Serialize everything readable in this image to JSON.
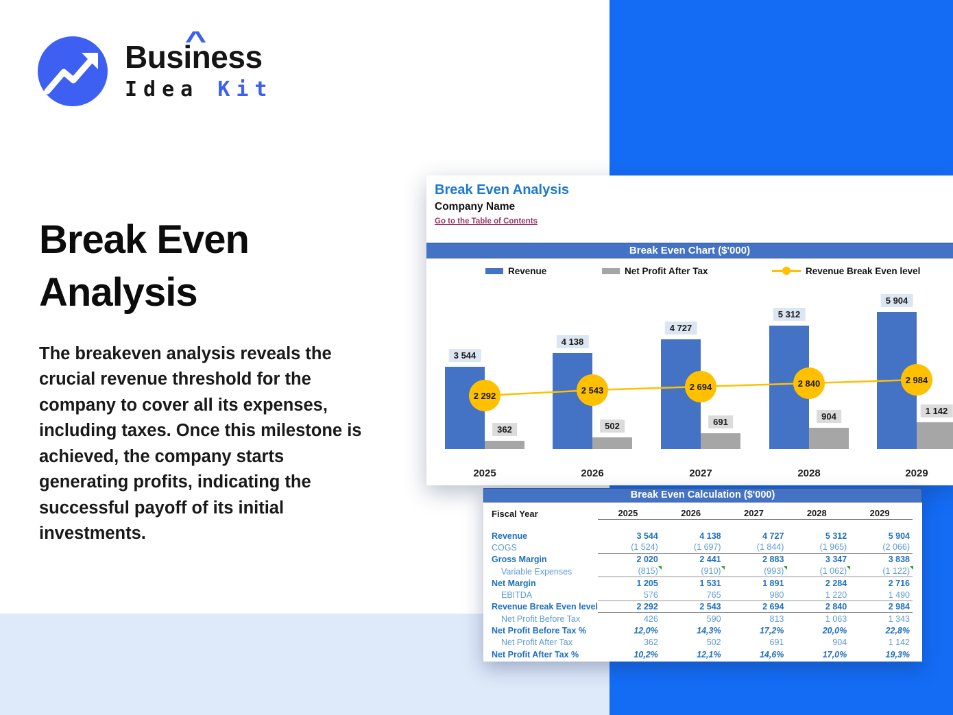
{
  "brand": {
    "line1": "Business",
    "accent": "^",
    "line2_dark": "Idea",
    "line2_accent": "Kit"
  },
  "hero": {
    "title_line1": "Break Even",
    "title_line2": "Analysis",
    "description": "The breakeven analysis reveals the crucial revenue threshold for the company to cover all its expenses, including taxes. Once this milestone is achieved, the company starts generating profits, indicating the successful payoff of its initial investments."
  },
  "sheet": {
    "title": "Break Even Analysis",
    "company": "Company Name",
    "toc_link": "Go to the Table of Contents",
    "chart_header": "Break Even Chart ($'000)",
    "table_header": "Break Even Calculation ($'000)",
    "fiscal_year_label": "Fiscal Year"
  },
  "chart_data": {
    "type": "bar",
    "title": "Break Even Chart ($'000)",
    "categories": [
      "2025",
      "2026",
      "2027",
      "2028",
      "2029"
    ],
    "series": [
      {
        "name": "Revenue",
        "type": "bar",
        "color": "#4472C4",
        "values": [
          3544,
          4138,
          4727,
          5312,
          5904
        ],
        "labels": [
          "3 544",
          "4 138",
          "4 727",
          "5 312",
          "5 904"
        ]
      },
      {
        "name": "Net Profit After Tax",
        "type": "bar",
        "color": "#A6A6A6",
        "values": [
          362,
          502,
          691,
          904,
          1142
        ],
        "labels": [
          "362",
          "502",
          "691",
          "904",
          "1 142"
        ]
      },
      {
        "name": "Revenue Break Even level",
        "type": "line",
        "color": "#FFC000",
        "values": [
          2292,
          2543,
          2694,
          2840,
          2984
        ],
        "labels": [
          "2 292",
          "2 543",
          "2 694",
          "2 840",
          "2 984"
        ]
      }
    ],
    "xlabel": "",
    "ylabel": "",
    "ylim": [
      0,
      6200
    ],
    "grid": false,
    "legend_position": "top",
    "data_labels": true
  },
  "table": {
    "years": [
      "2025",
      "2026",
      "2027",
      "2028",
      "2029"
    ],
    "rows": [
      {
        "label": "Revenue",
        "style": "bold",
        "underline": false,
        "values": [
          "3 544",
          "4 138",
          "4 727",
          "5 312",
          "5 904"
        ]
      },
      {
        "label": "COGS",
        "style": "light",
        "underline": true,
        "values": [
          "(1 524)",
          "(1 697)",
          "(1 844)",
          "(1 965)",
          "(2 066)"
        ]
      },
      {
        "label": "Gross Margin",
        "style": "bold",
        "underline": false,
        "values": [
          "2 020",
          "2 441",
          "2 883",
          "3 347",
          "3 838"
        ]
      },
      {
        "label": "Variable Expenses",
        "style": "light-indent",
        "underline": true,
        "markers": true,
        "values": [
          "(815)",
          "(910)",
          "(993)",
          "(1 062)",
          "(1 122)"
        ]
      },
      {
        "label": "Net Margin",
        "style": "bold",
        "underline": false,
        "values": [
          "1 205",
          "1 531",
          "1 891",
          "2 284",
          "2 716"
        ]
      },
      {
        "label": "EBITDA",
        "style": "light-indent",
        "underline": true,
        "values": [
          "576",
          "765",
          "980",
          "1 220",
          "1 490"
        ]
      },
      {
        "label": "Revenue Break Even level",
        "style": "bold",
        "underline": true,
        "values": [
          "2 292",
          "2 543",
          "2 694",
          "2 840",
          "2 984"
        ]
      },
      {
        "label": "Net Profit Before Tax",
        "style": "light-indent",
        "underline": false,
        "values": [
          "426",
          "590",
          "813",
          "1 063",
          "1 343"
        ]
      },
      {
        "label": "Net Profit Before Tax %",
        "style": "bold-italic",
        "underline": false,
        "values": [
          "12,0%",
          "14,3%",
          "17,2%",
          "20,0%",
          "22,8%"
        ]
      },
      {
        "label": "Net Profit After Tax",
        "style": "light-indent",
        "underline": false,
        "values": [
          "362",
          "502",
          "691",
          "904",
          "1 142"
        ]
      },
      {
        "label": "Net Profit After Tax %",
        "style": "bold-italic",
        "underline": false,
        "values": [
          "10,2%",
          "12,1%",
          "14,6%",
          "17,0%",
          "19,3%"
        ]
      }
    ]
  },
  "colors": {
    "accent_blue": "#3D5FF2",
    "background_blue": "#146CF5",
    "background_lightblue": "#DEE9FA",
    "excel_header_blue": "#4472C4",
    "excel_header_border": "#2F5597",
    "bar_blue": "#4472C4",
    "bar_gray": "#A6A6A6",
    "breakeven_yellow": "#FFC000",
    "sheet_title_blue": "#1B78CC",
    "row_bold_blue": "#1E6FBF",
    "row_light_blue": "#5B9BD5",
    "toc_link_color": "#9C3566",
    "comment_marker_green": "#1E9E1E"
  }
}
